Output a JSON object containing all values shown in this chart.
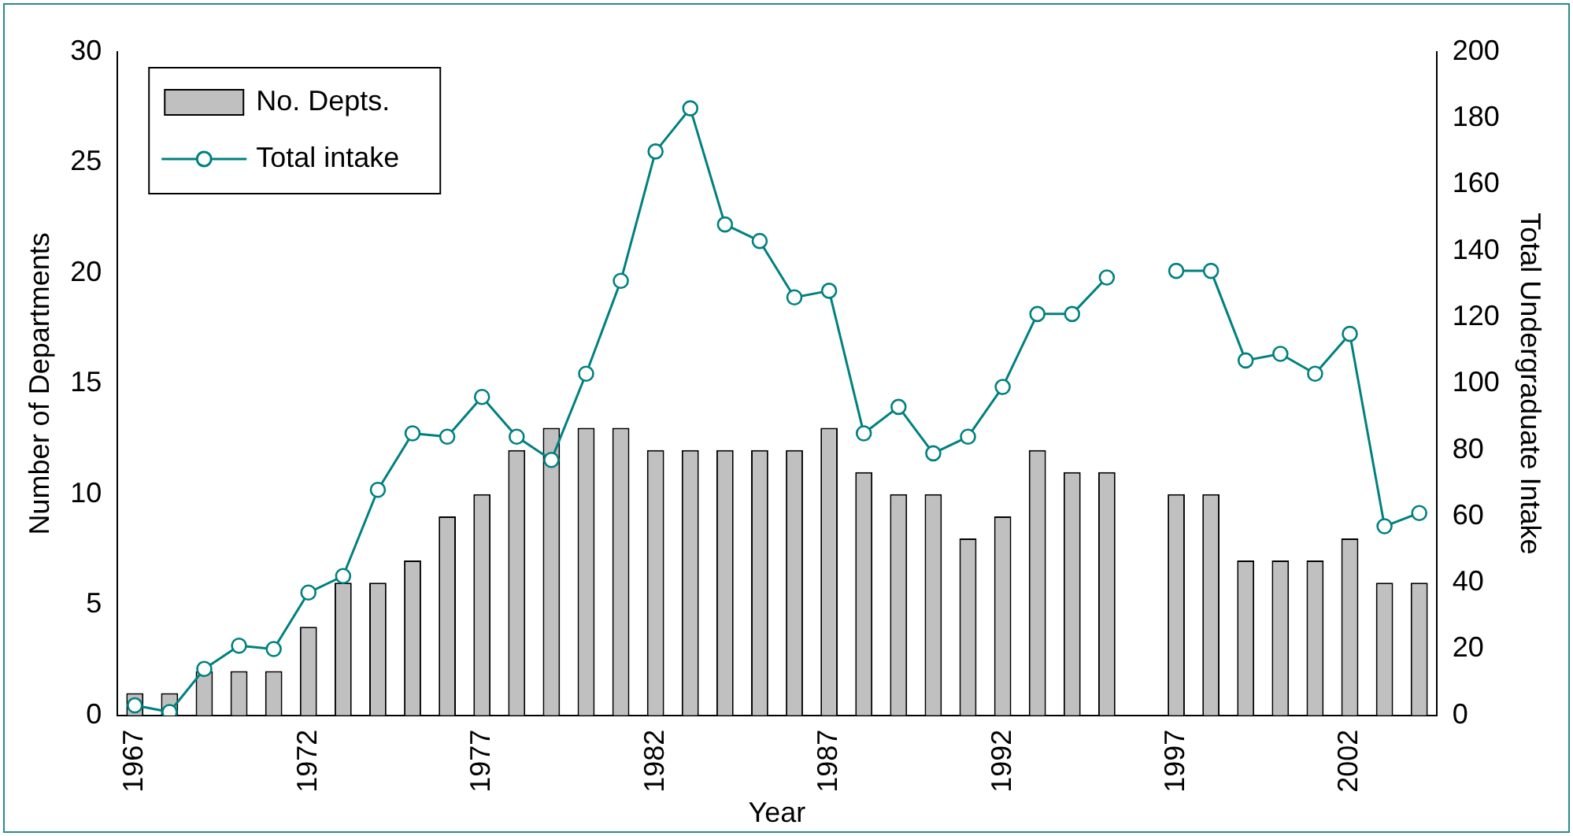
{
  "chart_data": {
    "type": "bar",
    "xlabel": "Year",
    "ylabel": "Number of Departments",
    "y2label": "Total Undergraduate Intake",
    "categories": [
      "1967",
      null,
      null,
      null,
      null,
      "1972",
      null,
      null,
      null,
      null,
      "1977",
      null,
      null,
      null,
      null,
      "1982",
      null,
      null,
      null,
      null,
      "1987",
      null,
      null,
      null,
      null,
      "1992",
      null,
      null,
      null,
      null,
      "1997",
      null,
      null,
      null,
      null,
      "2002",
      null,
      null
    ],
    "series": [
      {
        "name": "No. Depts.",
        "color": "#c0c0c0",
        "values": [
          1,
          1,
          2,
          2,
          2,
          4,
          6,
          6,
          7,
          9,
          10,
          12,
          13,
          13,
          13,
          12,
          12,
          12,
          12,
          12,
          13,
          11,
          10,
          10,
          8,
          9,
          12,
          11,
          11,
          null,
          10,
          10,
          7,
          7,
          7,
          8,
          6,
          6
        ]
      },
      {
        "name": "Total intake",
        "type": "line",
        "axis": "y2",
        "color": "#008080",
        "values": [
          3,
          1,
          14,
          21,
          20,
          37,
          42,
          68,
          85,
          84,
          96,
          84,
          77,
          103,
          131,
          170,
          183,
          148,
          143,
          126,
          128,
          85,
          93,
          79,
          84,
          99,
          121,
          121,
          132,
          null,
          134,
          134,
          107,
          109,
          103,
          115,
          57,
          61
        ]
      }
    ],
    "ylim": [
      0,
      30
    ],
    "yticks": [
      0,
      5,
      10,
      15,
      20,
      25,
      30
    ],
    "y2lim": [
      0,
      200
    ],
    "y2ticks": [
      0,
      20,
      40,
      60,
      80,
      100,
      120,
      140,
      160,
      180,
      200
    ],
    "legend": "top left",
    "grid": false,
    "marker": "circle"
  }
}
